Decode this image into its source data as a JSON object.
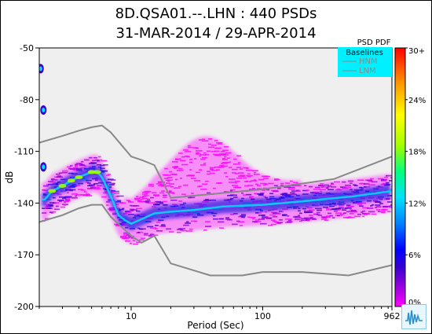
{
  "title": "8D.QSA01.--.LHN : 440 PSDs",
  "subtitle": "31-MAR-2014 / 29-APR-2014",
  "chart_data": {
    "type": "heatmap",
    "title": "8D.QSA01.--.LHN : 440 PSDs",
    "subtitle": "31-MAR-2014 / 29-APR-2014",
    "xlabel": "Period (Sec)",
    "ylabel": "dB",
    "xscale": "log",
    "xlim": [
      2,
      962
    ],
    "ylim": [
      -200,
      -50
    ],
    "xticks": [
      10,
      100,
      962
    ],
    "xtick_labels": [
      "10",
      "100",
      "962"
    ],
    "yticks": [
      -50,
      -80,
      -110,
      -140,
      -170,
      -200
    ],
    "ytick_labels": [
      "-50",
      "-80",
      "-110",
      "-140",
      "-170",
      "-200"
    ],
    "legend": {
      "title": "PSD PDF",
      "subtitle": "Baselines",
      "placement": "top-right",
      "entries": [
        "HNM",
        "LNM"
      ]
    },
    "colorbar": {
      "tick_labels": [
        "30+",
        "24%",
        "18%",
        "12%",
        "6%",
        "0%"
      ],
      "range": [
        0,
        30
      ],
      "colors": [
        "#ff00ff",
        "#9400e0",
        "#3a00d0",
        "#0000ff",
        "#0080ff",
        "#00e0ff",
        "#00ff80",
        "#a0ff00",
        "#ffff00",
        "#ff9000",
        "#ff0000"
      ]
    },
    "series": [
      {
        "name": "HNM",
        "x": [
          2,
          3,
          4,
          5,
          6,
          7,
          10,
          12,
          15,
          20,
          100,
          350,
          962
        ],
        "y": [
          -105,
          -101,
          -98,
          -96,
          -95,
          -99,
          -113,
          -115,
          -118,
          -137,
          -132,
          -126,
          -113
        ]
      },
      {
        "name": "LNM",
        "x": [
          2,
          3,
          4,
          5,
          6,
          7,
          10,
          12,
          15,
          20,
          40,
          70,
          100,
          200,
          450,
          962
        ],
        "y": [
          -151,
          -147,
          -143,
          -141,
          -141,
          -148,
          -159,
          -163,
          -159,
          -175,
          -182,
          -182,
          -180,
          -180,
          -182,
          -176
        ]
      },
      {
        "name": "PDF mode",
        "x": [
          2.2,
          2.5,
          3,
          3.5,
          4,
          5,
          5.5,
          6,
          7,
          8,
          9,
          10,
          15,
          20,
          30,
          50,
          100,
          200,
          500,
          962
        ],
        "y": [
          -138,
          -133,
          -130,
          -127,
          -125,
          -122,
          -122,
          -125,
          -136,
          -147,
          -150,
          -152,
          -146,
          -145,
          -144,
          -142,
          -141,
          -139,
          -136,
          -133
        ]
      }
    ],
    "annotations": [
      {
        "x": 2.05,
        "y": -62,
        "note": "isolated cluster"
      },
      {
        "x": 2.15,
        "y": -86,
        "note": "isolated cluster"
      },
      {
        "x": 2.15,
        "y": -119,
        "note": "isolated cluster"
      }
    ]
  }
}
